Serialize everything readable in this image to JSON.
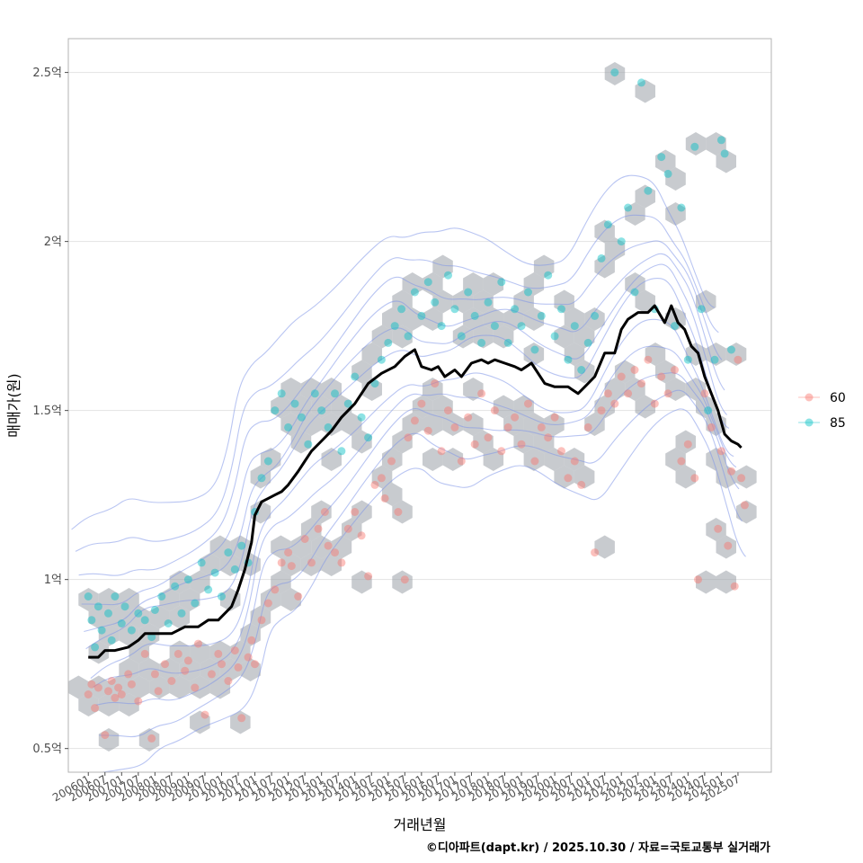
{
  "chart_data": {
    "type": "scatter",
    "title": "",
    "xlabel": "거래년월",
    "ylabel": "매매가(원)",
    "caption": "©디아파트(dapt.kr) / 2025.10.30 / 자료=국토교통부 실거래가",
    "xlim": [
      2005.4,
      2026.5
    ],
    "ylim": [
      0.43,
      2.6
    ],
    "y_unit": "억",
    "yticks": [
      {
        "value": 0.5,
        "label": "0.5억"
      },
      {
        "value": 1.0,
        "label": "1억"
      },
      {
        "value": 1.5,
        "label": "1.5억"
      },
      {
        "value": 2.0,
        "label": "2억"
      },
      {
        "value": 2.5,
        "label": "2.5억"
      }
    ],
    "xticks": [
      "200601",
      "200607",
      "200701",
      "200707",
      "200801",
      "200807",
      "200901",
      "200907",
      "201001",
      "201007",
      "201101",
      "201107",
      "201201",
      "201207",
      "201301",
      "201307",
      "201401",
      "201407",
      "201501",
      "201507",
      "201601",
      "201607",
      "201701",
      "201707",
      "201801",
      "201807",
      "201901",
      "201907",
      "202001",
      "202007",
      "202101",
      "202107",
      "202201",
      "202207",
      "202301",
      "202307",
      "202401",
      "202407",
      "202501",
      "202507"
    ],
    "grid": true,
    "legend": {
      "position": "right",
      "entries": [
        {
          "name": "60",
          "color": "#F8766D"
        },
        {
          "name": "85",
          "color": "#00BFC4"
        }
      ]
    },
    "hex_color": "#9aa1a8",
    "contour_color": "#7f95e8",
    "trend_color": "#000000",
    "series": [
      {
        "name": "60",
        "color": "#F8766D",
        "points": [
          [
            2006.0,
            0.66
          ],
          [
            2006.1,
            0.69
          ],
          [
            2006.2,
            0.62
          ],
          [
            2006.3,
            0.68
          ],
          [
            2006.5,
            0.54
          ],
          [
            2006.6,
            0.67
          ],
          [
            2006.7,
            0.7
          ],
          [
            2006.8,
            0.65
          ],
          [
            2006.9,
            0.68
          ],
          [
            2007.0,
            0.66
          ],
          [
            2007.2,
            0.72
          ],
          [
            2007.3,
            0.69
          ],
          [
            2007.5,
            0.64
          ],
          [
            2007.7,
            0.78
          ],
          [
            2007.9,
            0.53
          ],
          [
            2008.0,
            0.72
          ],
          [
            2008.1,
            0.67
          ],
          [
            2008.3,
            0.75
          ],
          [
            2008.5,
            0.7
          ],
          [
            2008.7,
            0.78
          ],
          [
            2008.9,
            0.73
          ],
          [
            2009.0,
            0.76
          ],
          [
            2009.2,
            0.68
          ],
          [
            2009.3,
            0.81
          ],
          [
            2009.5,
            0.6
          ],
          [
            2009.7,
            0.72
          ],
          [
            2009.9,
            0.78
          ],
          [
            2010.0,
            0.75
          ],
          [
            2010.2,
            0.7
          ],
          [
            2010.4,
            0.79
          ],
          [
            2010.5,
            0.74
          ],
          [
            2010.6,
            0.59
          ],
          [
            2010.8,
            0.77
          ],
          [
            2010.9,
            0.82
          ],
          [
            2011.0,
            0.75
          ],
          [
            2011.2,
            0.88
          ],
          [
            2011.4,
            0.93
          ],
          [
            2011.6,
            0.97
          ],
          [
            2011.8,
            1.05
          ],
          [
            2012.0,
            1.08
          ],
          [
            2012.1,
            1.04
          ],
          [
            2012.3,
            0.95
          ],
          [
            2012.5,
            1.12
          ],
          [
            2012.7,
            1.05
          ],
          [
            2012.9,
            1.15
          ],
          [
            2013.1,
            1.2
          ],
          [
            2013.2,
            1.1
          ],
          [
            2013.4,
            1.08
          ],
          [
            2013.6,
            1.05
          ],
          [
            2013.8,
            1.15
          ],
          [
            2014.0,
            1.2
          ],
          [
            2014.2,
            1.13
          ],
          [
            2014.4,
            1.01
          ],
          [
            2014.6,
            1.28
          ],
          [
            2014.8,
            1.3
          ],
          [
            2014.9,
            1.24
          ],
          [
            2015.1,
            1.35
          ],
          [
            2015.3,
            1.2
          ],
          [
            2015.5,
            1.0
          ],
          [
            2015.6,
            1.42
          ],
          [
            2015.8,
            1.47
          ],
          [
            2016.0,
            1.52
          ],
          [
            2016.2,
            1.44
          ],
          [
            2016.4,
            1.58
          ],
          [
            2016.6,
            1.38
          ],
          [
            2016.8,
            1.5
          ],
          [
            2017.0,
            1.45
          ],
          [
            2017.2,
            1.35
          ],
          [
            2017.4,
            1.48
          ],
          [
            2017.6,
            1.4
          ],
          [
            2017.8,
            1.55
          ],
          [
            2018.0,
            1.42
          ],
          [
            2018.2,
            1.5
          ],
          [
            2018.4,
            1.38
          ],
          [
            2018.6,
            1.45
          ],
          [
            2018.8,
            1.48
          ],
          [
            2019.0,
            1.4
          ],
          [
            2019.2,
            1.52
          ],
          [
            2019.4,
            1.35
          ],
          [
            2019.6,
            1.45
          ],
          [
            2019.8,
            1.42
          ],
          [
            2020.0,
            1.48
          ],
          [
            2020.2,
            1.38
          ],
          [
            2020.4,
            1.3
          ],
          [
            2020.6,
            1.35
          ],
          [
            2020.8,
            1.28
          ],
          [
            2021.0,
            1.45
          ],
          [
            2021.2,
            1.08
          ],
          [
            2021.4,
            1.5
          ],
          [
            2021.6,
            1.55
          ],
          [
            2021.8,
            1.52
          ],
          [
            2022.0,
            1.6
          ],
          [
            2022.2,
            1.55
          ],
          [
            2022.4,
            1.62
          ],
          [
            2022.6,
            1.58
          ],
          [
            2022.8,
            1.65
          ],
          [
            2023.0,
            1.52
          ],
          [
            2023.2,
            1.6
          ],
          [
            2023.4,
            1.55
          ],
          [
            2023.6,
            1.62
          ],
          [
            2023.8,
            1.35
          ],
          [
            2024.0,
            1.4
          ],
          [
            2024.2,
            1.3
          ],
          [
            2024.3,
            1.0
          ],
          [
            2024.5,
            1.55
          ],
          [
            2024.7,
            1.45
          ],
          [
            2024.9,
            1.15
          ],
          [
            2025.0,
            1.38
          ],
          [
            2025.2,
            1.1
          ],
          [
            2025.3,
            1.32
          ],
          [
            2025.4,
            0.98
          ],
          [
            2025.5,
            1.65
          ],
          [
            2025.6,
            1.3
          ],
          [
            2025.7,
            1.22
          ]
        ]
      },
      {
        "name": "85",
        "color": "#00BFC4",
        "points": [
          [
            2006.0,
            0.95
          ],
          [
            2006.1,
            0.88
          ],
          [
            2006.2,
            0.8
          ],
          [
            2006.3,
            0.92
          ],
          [
            2006.4,
            0.85
          ],
          [
            2006.6,
            0.9
          ],
          [
            2006.7,
            0.82
          ],
          [
            2006.8,
            0.95
          ],
          [
            2007.0,
            0.87
          ],
          [
            2007.1,
            0.92
          ],
          [
            2007.3,
            0.85
          ],
          [
            2007.5,
            0.9
          ],
          [
            2007.7,
            0.88
          ],
          [
            2007.9,
            0.83
          ],
          [
            2008.0,
            0.91
          ],
          [
            2008.2,
            0.95
          ],
          [
            2008.4,
            0.87
          ],
          [
            2008.6,
            0.98
          ],
          [
            2008.8,
            0.9
          ],
          [
            2009.0,
            1.0
          ],
          [
            2009.2,
            0.93
          ],
          [
            2009.4,
            1.05
          ],
          [
            2009.6,
            0.97
          ],
          [
            2009.8,
            1.02
          ],
          [
            2010.0,
            0.95
          ],
          [
            2010.2,
            1.08
          ],
          [
            2010.4,
            1.03
          ],
          [
            2010.6,
            1.1
          ],
          [
            2010.8,
            1.05
          ],
          [
            2011.0,
            1.2
          ],
          [
            2011.2,
            1.3
          ],
          [
            2011.4,
            1.35
          ],
          [
            2011.6,
            1.5
          ],
          [
            2011.8,
            1.55
          ],
          [
            2012.0,
            1.45
          ],
          [
            2012.2,
            1.52
          ],
          [
            2012.4,
            1.48
          ],
          [
            2012.6,
            1.4
          ],
          [
            2012.8,
            1.55
          ],
          [
            2013.0,
            1.5
          ],
          [
            2013.2,
            1.45
          ],
          [
            2013.4,
            1.55
          ],
          [
            2013.6,
            1.38
          ],
          [
            2013.8,
            1.52
          ],
          [
            2014.0,
            1.6
          ],
          [
            2014.2,
            1.48
          ],
          [
            2014.4,
            1.42
          ],
          [
            2014.6,
            1.58
          ],
          [
            2014.8,
            1.65
          ],
          [
            2015.0,
            1.7
          ],
          [
            2015.2,
            1.75
          ],
          [
            2015.4,
            1.8
          ],
          [
            2015.6,
            1.72
          ],
          [
            2015.8,
            1.85
          ],
          [
            2016.0,
            1.78
          ],
          [
            2016.2,
            1.88
          ],
          [
            2016.4,
            1.82
          ],
          [
            2016.6,
            1.75
          ],
          [
            2016.8,
            1.9
          ],
          [
            2017.0,
            1.8
          ],
          [
            2017.2,
            1.72
          ],
          [
            2017.4,
            1.85
          ],
          [
            2017.6,
            1.78
          ],
          [
            2017.8,
            1.7
          ],
          [
            2018.0,
            1.82
          ],
          [
            2018.2,
            1.75
          ],
          [
            2018.4,
            1.88
          ],
          [
            2018.6,
            1.7
          ],
          [
            2018.8,
            1.8
          ],
          [
            2019.0,
            1.75
          ],
          [
            2019.2,
            1.85
          ],
          [
            2019.4,
            1.68
          ],
          [
            2019.6,
            1.78
          ],
          [
            2019.8,
            1.9
          ],
          [
            2020.0,
            1.72
          ],
          [
            2020.2,
            1.8
          ],
          [
            2020.4,
            1.65
          ],
          [
            2020.6,
            1.75
          ],
          [
            2020.8,
            1.62
          ],
          [
            2021.0,
            1.7
          ],
          [
            2021.2,
            1.78
          ],
          [
            2021.4,
            1.95
          ],
          [
            2021.6,
            2.05
          ],
          [
            2021.8,
            2.5
          ],
          [
            2022.0,
            2.0
          ],
          [
            2022.2,
            2.1
          ],
          [
            2022.4,
            1.85
          ],
          [
            2022.6,
            2.47
          ],
          [
            2022.8,
            2.15
          ],
          [
            2023.0,
            1.8
          ],
          [
            2023.2,
            2.25
          ],
          [
            2023.4,
            2.2
          ],
          [
            2023.6,
            1.75
          ],
          [
            2023.8,
            2.1
          ],
          [
            2024.0,
            1.65
          ],
          [
            2024.2,
            2.28
          ],
          [
            2024.4,
            1.8
          ],
          [
            2024.6,
            1.5
          ],
          [
            2024.8,
            1.65
          ],
          [
            2025.0,
            2.3
          ],
          [
            2025.1,
            2.26
          ],
          [
            2025.3,
            1.68
          ]
        ]
      }
    ],
    "trend": {
      "name": "median",
      "x": [
        2006.0,
        2006.3,
        2006.5,
        2006.8,
        2007.2,
        2007.5,
        2007.7,
        2008.0,
        2008.3,
        2008.5,
        2008.9,
        2009.3,
        2009.6,
        2009.9,
        2010.3,
        2010.5,
        2010.7,
        2010.9,
        2011.0,
        2011.2,
        2011.4,
        2011.6,
        2011.8,
        2012.0,
        2012.3,
        2012.5,
        2012.7,
        2013.0,
        2013.3,
        2013.6,
        2014.0,
        2014.4,
        2014.8,
        2015.2,
        2015.5,
        2015.8,
        2016.0,
        2016.3,
        2016.5,
        2016.7,
        2017.0,
        2017.2,
        2017.5,
        2017.8,
        2018.0,
        2018.2,
        2018.5,
        2018.8,
        2019.0,
        2019.3,
        2019.7,
        2020.0,
        2020.4,
        2020.7,
        2020.9,
        2021.2,
        2021.5,
        2021.8,
        2022.0,
        2022.2,
        2022.5,
        2022.8,
        2023.0,
        2023.3,
        2023.5,
        2023.7,
        2023.9,
        2024.1,
        2024.3,
        2024.5,
        2024.7,
        2024.9,
        2025.1,
        2025.3,
        2025.5,
        2025.6
      ],
      "y": [
        0.77,
        0.77,
        0.79,
        0.79,
        0.8,
        0.82,
        0.84,
        0.84,
        0.84,
        0.84,
        0.86,
        0.86,
        0.88,
        0.88,
        0.92,
        0.97,
        1.03,
        1.11,
        1.19,
        1.23,
        1.24,
        1.25,
        1.26,
        1.28,
        1.32,
        1.35,
        1.38,
        1.41,
        1.44,
        1.48,
        1.52,
        1.58,
        1.61,
        1.63,
        1.66,
        1.68,
        1.63,
        1.62,
        1.63,
        1.6,
        1.62,
        1.6,
        1.64,
        1.65,
        1.64,
        1.65,
        1.64,
        1.63,
        1.62,
        1.64,
        1.58,
        1.57,
        1.57,
        1.55,
        1.57,
        1.6,
        1.67,
        1.67,
        1.74,
        1.77,
        1.79,
        1.79,
        1.81,
        1.76,
        1.81,
        1.76,
        1.74,
        1.69,
        1.67,
        1.6,
        1.55,
        1.5,
        1.43,
        1.41,
        1.4,
        1.39
      ]
    }
  }
}
